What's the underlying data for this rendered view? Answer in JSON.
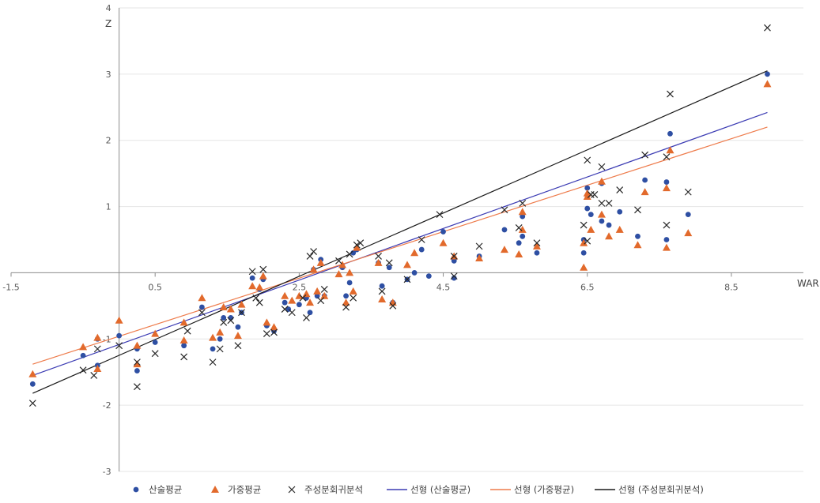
{
  "chart_data": {
    "type": "scatter",
    "title": "",
    "xlabel": "WAR",
    "ylabel": "Z",
    "xlim": [
      -1.5,
      9.5
    ],
    "ylim": [
      -3,
      4
    ],
    "x_ticks": [
      -1.5,
      0.5,
      2.5,
      4.5,
      6.5,
      8.5
    ],
    "x_tick_labels": [
      "-1.5",
      "0.5",
      "2.5",
      "4.5",
      "6.5",
      "8.5"
    ],
    "y_ticks": [
      -3,
      -2,
      -1,
      1,
      2,
      3,
      4
    ],
    "y_tick_labels": [
      "-3",
      "-2",
      "-1",
      "1",
      "2",
      "3",
      "4"
    ],
    "grid": true,
    "legend_position": "bottom",
    "series": [
      {
        "name": "산술평균",
        "marker": "circle",
        "color": "#2e4fa3",
        "points": [
          [
            -1.2,
            -1.68
          ],
          [
            -0.5,
            -1.25
          ],
          [
            -0.3,
            -1.4
          ],
          [
            -0.3,
            -1.0
          ],
          [
            0.0,
            -0.95
          ],
          [
            0.25,
            -1.48
          ],
          [
            0.25,
            -1.15
          ],
          [
            0.5,
            -1.05
          ],
          [
            0.9,
            -1.1
          ],
          [
            1.15,
            -0.52
          ],
          [
            1.3,
            -1.15
          ],
          [
            1.4,
            -1.0
          ],
          [
            1.45,
            -0.68
          ],
          [
            1.55,
            -0.68
          ],
          [
            1.65,
            -0.82
          ],
          [
            1.7,
            -0.6
          ],
          [
            1.85,
            -0.08
          ],
          [
            1.95,
            -0.25
          ],
          [
            2.0,
            -0.1
          ],
          [
            2.05,
            -0.8
          ],
          [
            2.15,
            -0.88
          ],
          [
            2.3,
            -0.45
          ],
          [
            2.35,
            -0.55
          ],
          [
            2.5,
            -0.48
          ],
          [
            2.6,
            -0.38
          ],
          [
            2.65,
            -0.6
          ],
          [
            2.7,
            0.05
          ],
          [
            2.75,
            -0.35
          ],
          [
            2.8,
            0.2
          ],
          [
            2.85,
            -0.35
          ],
          [
            3.1,
            0.08
          ],
          [
            3.15,
            -0.35
          ],
          [
            3.2,
            -0.15
          ],
          [
            3.25,
            0.3
          ],
          [
            3.3,
            0.35
          ],
          [
            3.6,
            0.15
          ],
          [
            3.65,
            -0.2
          ],
          [
            3.75,
            0.08
          ],
          [
            3.8,
            -0.45
          ],
          [
            4.0,
            -0.1
          ],
          [
            4.1,
            0.0
          ],
          [
            4.2,
            0.35
          ],
          [
            4.3,
            -0.05
          ],
          [
            4.5,
            0.62
          ],
          [
            4.65,
            0.18
          ],
          [
            4.65,
            -0.08
          ],
          [
            5.0,
            0.25
          ],
          [
            5.35,
            0.65
          ],
          [
            5.55,
            0.45
          ],
          [
            5.6,
            0.55
          ],
          [
            5.6,
            0.85
          ],
          [
            5.8,
            0.3
          ],
          [
            6.45,
            0.5
          ],
          [
            6.45,
            0.3
          ],
          [
            6.5,
            0.97
          ],
          [
            6.55,
            0.88
          ],
          [
            6.7,
            0.78
          ],
          [
            6.8,
            0.72
          ],
          [
            6.95,
            0.92
          ],
          [
            7.2,
            0.55
          ],
          [
            7.6,
            0.5
          ],
          [
            7.9,
            0.88
          ],
          [
            6.5,
            1.28
          ],
          [
            6.7,
            1.35
          ],
          [
            7.3,
            1.4
          ],
          [
            7.6,
            1.37
          ],
          [
            7.65,
            2.1
          ],
          [
            9.0,
            3.0
          ]
        ]
      },
      {
        "name": "가중평균",
        "marker": "triangle",
        "color": "#e26a2c",
        "points": [
          [
            -1.2,
            -1.53
          ],
          [
            -0.5,
            -1.12
          ],
          [
            -0.3,
            -1.45
          ],
          [
            -0.3,
            -0.98
          ],
          [
            0.0,
            -0.72
          ],
          [
            0.25,
            -1.38
          ],
          [
            0.25,
            -1.1
          ],
          [
            0.5,
            -0.92
          ],
          [
            0.9,
            -1.02
          ],
          [
            0.9,
            -0.75
          ],
          [
            1.15,
            -0.38
          ],
          [
            1.3,
            -0.98
          ],
          [
            1.4,
            -0.9
          ],
          [
            1.45,
            -0.52
          ],
          [
            1.55,
            -0.55
          ],
          [
            1.65,
            -0.95
          ],
          [
            1.7,
            -0.48
          ],
          [
            1.85,
            -0.2
          ],
          [
            1.95,
            -0.22
          ],
          [
            2.0,
            -0.05
          ],
          [
            2.05,
            -0.75
          ],
          [
            2.15,
            -0.82
          ],
          [
            2.3,
            -0.35
          ],
          [
            2.4,
            -0.42
          ],
          [
            2.5,
            -0.35
          ],
          [
            2.6,
            -0.32
          ],
          [
            2.65,
            -0.45
          ],
          [
            2.7,
            0.05
          ],
          [
            2.75,
            -0.28
          ],
          [
            2.8,
            0.15
          ],
          [
            2.85,
            -0.35
          ],
          [
            3.05,
            -0.02
          ],
          [
            3.1,
            0.12
          ],
          [
            3.15,
            -0.45
          ],
          [
            3.2,
            0.0
          ],
          [
            3.25,
            -0.28
          ],
          [
            3.3,
            0.38
          ],
          [
            3.6,
            0.15
          ],
          [
            3.65,
            -0.4
          ],
          [
            3.8,
            -0.45
          ],
          [
            4.0,
            0.12
          ],
          [
            4.1,
            0.3
          ],
          [
            4.5,
            0.45
          ],
          [
            4.65,
            0.25
          ],
          [
            5.0,
            0.22
          ],
          [
            5.35,
            0.35
          ],
          [
            5.55,
            0.28
          ],
          [
            5.6,
            0.92
          ],
          [
            5.6,
            0.65
          ],
          [
            5.8,
            0.4
          ],
          [
            6.45,
            0.45
          ],
          [
            6.45,
            0.08
          ],
          [
            6.5,
            1.15
          ],
          [
            6.55,
            0.65
          ],
          [
            6.7,
            0.88
          ],
          [
            6.8,
            0.55
          ],
          [
            6.95,
            0.65
          ],
          [
            7.2,
            0.42
          ],
          [
            7.6,
            0.38
          ],
          [
            7.9,
            0.6
          ],
          [
            6.5,
            1.2
          ],
          [
            6.7,
            1.38
          ],
          [
            7.3,
            1.22
          ],
          [
            7.6,
            1.28
          ],
          [
            7.65,
            1.85
          ],
          [
            9.0,
            2.85
          ]
        ]
      },
      {
        "name": "주성분회귀분석",
        "marker": "x",
        "color": "#262626",
        "points": [
          [
            -1.2,
            -1.97
          ],
          [
            -0.5,
            -1.47
          ],
          [
            -0.35,
            -1.55
          ],
          [
            -0.3,
            -1.15
          ],
          [
            0.0,
            -1.1
          ],
          [
            0.25,
            -1.72
          ],
          [
            0.25,
            -1.35
          ],
          [
            0.5,
            -1.22
          ],
          [
            0.9,
            -1.27
          ],
          [
            0.95,
            -0.88
          ],
          [
            1.15,
            -0.6
          ],
          [
            1.3,
            -1.35
          ],
          [
            1.4,
            -1.15
          ],
          [
            1.45,
            -0.75
          ],
          [
            1.55,
            -0.72
          ],
          [
            1.65,
            -1.1
          ],
          [
            1.7,
            -0.6
          ],
          [
            1.85,
            0.02
          ],
          [
            1.9,
            -0.38
          ],
          [
            1.95,
            -0.45
          ],
          [
            2.0,
            0.05
          ],
          [
            2.05,
            -0.92
          ],
          [
            2.15,
            -0.9
          ],
          [
            2.3,
            -0.55
          ],
          [
            2.4,
            -0.6
          ],
          [
            2.55,
            -0.38
          ],
          [
            2.6,
            -0.68
          ],
          [
            2.65,
            0.25
          ],
          [
            2.7,
            0.32
          ],
          [
            2.8,
            -0.42
          ],
          [
            2.85,
            -0.25
          ],
          [
            3.05,
            0.18
          ],
          [
            3.15,
            -0.52
          ],
          [
            3.2,
            0.28
          ],
          [
            3.25,
            -0.38
          ],
          [
            3.3,
            0.42
          ],
          [
            3.35,
            0.45
          ],
          [
            3.6,
            0.25
          ],
          [
            3.65,
            -0.28
          ],
          [
            3.75,
            0.15
          ],
          [
            3.8,
            -0.5
          ],
          [
            4.0,
            -0.1
          ],
          [
            4.2,
            0.5
          ],
          [
            4.45,
            0.88
          ],
          [
            4.65,
            0.25
          ],
          [
            4.65,
            -0.05
          ],
          [
            5.0,
            0.4
          ],
          [
            5.35,
            0.95
          ],
          [
            5.55,
            0.68
          ],
          [
            5.6,
            1.05
          ],
          [
            5.8,
            0.45
          ],
          [
            6.45,
            0.72
          ],
          [
            6.5,
            0.48
          ],
          [
            6.55,
            1.18
          ],
          [
            6.6,
            1.18
          ],
          [
            6.7,
            1.05
          ],
          [
            6.8,
            1.05
          ],
          [
            6.95,
            1.25
          ],
          [
            7.2,
            0.95
          ],
          [
            7.6,
            0.72
          ],
          [
            7.9,
            1.22
          ],
          [
            6.5,
            1.7
          ],
          [
            6.7,
            1.6
          ],
          [
            7.3,
            1.78
          ],
          [
            7.6,
            1.75
          ],
          [
            7.65,
            2.7
          ],
          [
            9.0,
            3.7
          ]
        ]
      }
    ],
    "trendlines": [
      {
        "name": "선형 (산술평균)",
        "color": "#3b3bb3",
        "x": [
          -1.2,
          9.0
        ],
        "y": [
          -1.55,
          2.42
        ]
      },
      {
        "name": "선형 (가중평균)",
        "color": "#ee7b4b",
        "x": [
          -1.2,
          9.0
        ],
        "y": [
          -1.38,
          2.2
        ]
      },
      {
        "name": "선형 (주성분회귀분석)",
        "color": "#1a1a1a",
        "x": [
          -1.2,
          9.0
        ],
        "y": [
          -1.82,
          3.05
        ]
      }
    ]
  }
}
